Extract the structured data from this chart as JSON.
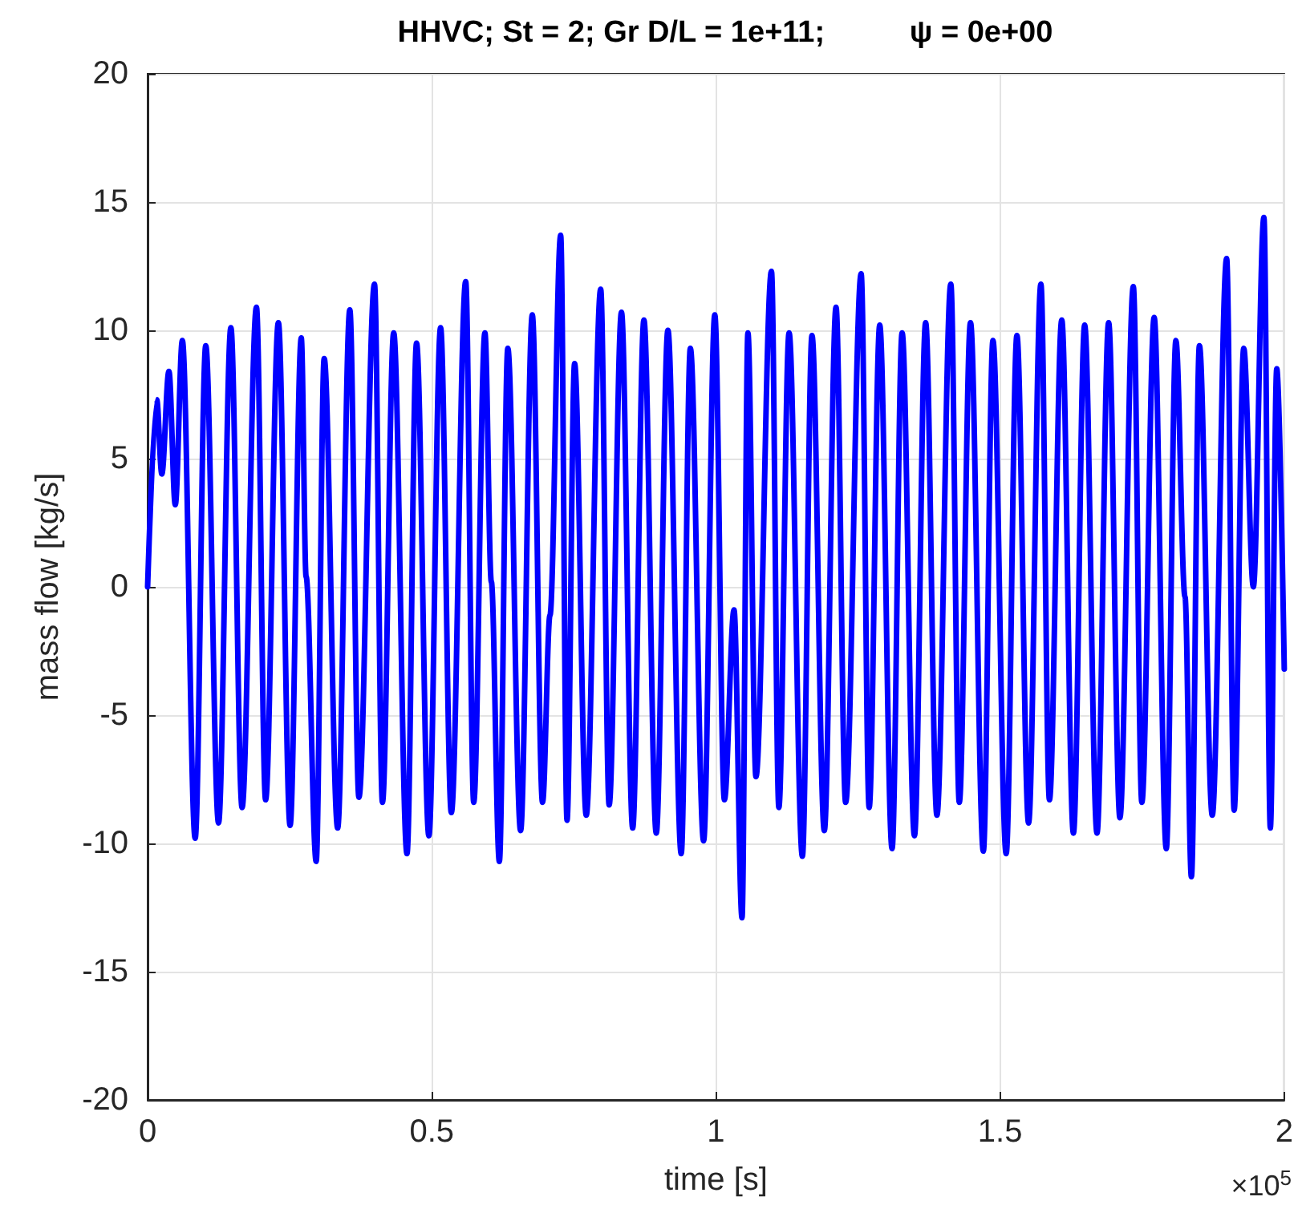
{
  "chart_data": {
    "type": "line",
    "title": "HHVC; St = 2; Gr D/L = 1e+11;          ψ = 0e+00",
    "xlabel": "time [s]",
    "ylabel": "mass flow [kg/s]",
    "annotations": [
      "×10$^{5}$"
    ],
    "x": [
      0,
      0.016,
      0.025,
      0.0375,
      0.0487,
      0.0611,
      0.0837,
      0.1023,
      0.1248,
      0.1465,
      0.1662,
      0.1915,
      0.2076,
      0.2301,
      0.2507,
      0.2704,
      0.2789,
      0.2966,
      0.3107,
      0.3344,
      0.3558,
      0.3718,
      0.3992,
      0.4132,
      0.433,
      0.4564,
      0.4732,
      0.4949,
      0.5155,
      0.5344,
      0.5597,
      0.5738,
      0.5935,
      0.6048,
      0.6189,
      0.6338,
      0.6563,
      0.6769,
      0.6949,
      0.708,
      0.7268,
      0.738,
      0.7513,
      0.7718,
      0.7972,
      0.8121,
      0.8338,
      0.8535,
      0.8733,
      0.895,
      0.9155,
      0.9389,
      0.955,
      0.9783,
      0.998,
      1.0149,
      1.0318,
      1.0459,
      1.0563,
      1.0704,
      1.0977,
      1.1107,
      1.1287,
      1.1521,
      1.169,
      1.1907,
      1.2113,
      1.2282,
      1.2555,
      1.2696,
      1.2882,
      1.3099,
      1.3276,
      1.3493,
      1.369,
      1.3888,
      1.4133,
      1.4282,
      1.4479,
      1.4705,
      1.4874,
      1.5107,
      1.5296,
      1.5501,
      1.5718,
      1.5868,
      1.6085,
      1.629,
      1.6488,
      1.6705,
      1.691,
      1.7108,
      1.7344,
      1.7494,
      1.7711,
      1.7924,
      1.8093,
      1.8254,
      1.8366,
      1.8507,
      1.8733,
      1.8986,
      1.9118,
      1.9287,
      1.9456,
      1.9642,
      1.9755,
      1.9868,
      2
    ],
    "series": [
      {
        "color": "#0000ff",
        "values": [
          0,
          7.3,
          4.4,
          8.4,
          3.2,
          9.6,
          -9.8,
          9.4,
          -9.2,
          10.1,
          -8.6,
          10.9,
          -8.3,
          10.3,
          -9.3,
          9.7,
          0.4,
          -10.7,
          8.9,
          -9.4,
          10.8,
          -8.2,
          11.8,
          -8.4,
          9.9,
          -10.4,
          9.5,
          -9.7,
          10.1,
          -8.8,
          11.9,
          -8.4,
          9.9,
          0.2,
          -10.7,
          9.3,
          -9.5,
          10.6,
          -8.4,
          -1.1,
          13.7,
          -9.1,
          8.7,
          -8.9,
          11.6,
          -8.5,
          10.7,
          -9.4,
          10.4,
          -9.6,
          10.0,
          -10.4,
          9.3,
          -9.9,
          10.6,
          -8.3,
          -0.9,
          -12.9,
          9.9,
          -7.4,
          12.3,
          -8.6,
          9.9,
          -10.5,
          9.8,
          -9.5,
          10.9,
          -8.4,
          12.2,
          -8.6,
          10.2,
          -10.2,
          9.9,
          -9.7,
          10.3,
          -8.9,
          11.8,
          -8.4,
          10.3,
          -10.3,
          9.6,
          -10.4,
          9.8,
          -9.2,
          11.8,
          -8.3,
          10.4,
          -9.6,
          10.2,
          -9.6,
          10.3,
          -9.0,
          11.7,
          -8.4,
          10.5,
          -10.2,
          9.6,
          -0.4,
          -11.3,
          9.4,
          -8.9,
          12.8,
          -8.7,
          9.3,
          0,
          14.4,
          -9.4,
          8.5,
          -3.2
        ]
      }
    ],
    "xlim": [
      0,
      2
    ],
    "xticks": [
      0,
      0.5,
      1,
      1.5,
      2
    ],
    "ylim": [
      -20,
      20
    ],
    "yticks": [
      -20,
      -15,
      -10,
      -5,
      0,
      5,
      10,
      15,
      20
    ],
    "grid": true,
    "marker": "none",
    "line_style": "solid"
  }
}
